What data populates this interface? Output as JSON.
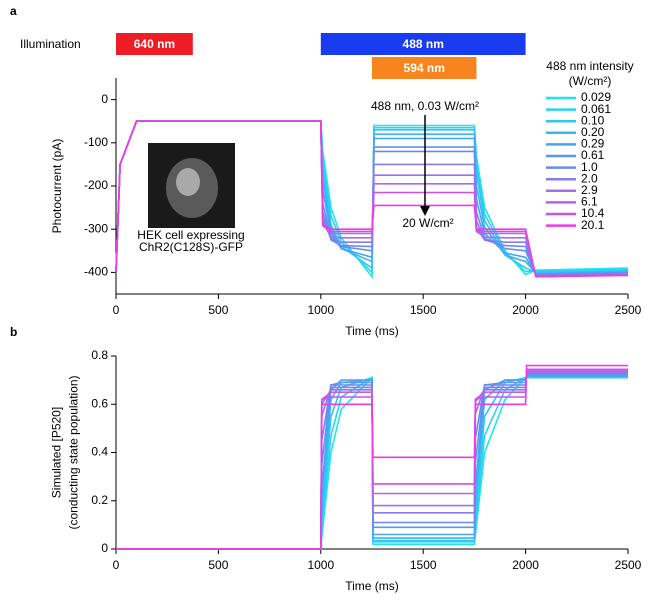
{
  "chart_data": [
    {
      "type": "line",
      "panel": "a",
      "ylabel": "Photocurrent (pA)",
      "xlabel": "Time (ms)",
      "xlim": [
        0,
        2500
      ],
      "xticks": [
        0,
        500,
        1000,
        1500,
        2000,
        2500
      ],
      "ylim": [
        -450,
        50
      ],
      "yticks": [
        0,
        -100,
        -200,
        -300,
        -400
      ],
      "illumination": {
        "label": "Illumination",
        "bars": [
          {
            "label": "640 nm",
            "start": 0,
            "end": 375,
            "color": "#ee1c25"
          },
          {
            "label": "488 nm",
            "start": 1000,
            "end": 2000,
            "color": "#1a3cf0"
          },
          {
            "label": "594 nm",
            "start": 1250,
            "end": 1760,
            "color": "#f7841e"
          }
        ]
      },
      "legend_title": [
        "488 nm intensity",
        "(W/cm²)"
      ],
      "annotations": [
        "488 nm, 0.03 W/cm²",
        "20 W/cm²"
      ],
      "inset_caption": [
        "HEK cell expressing",
        "ChR2(C128S)-GFP"
      ],
      "x": [
        0,
        20,
        100,
        1000,
        1010,
        1050,
        1100,
        1250,
        1260,
        1500,
        1750,
        1760,
        1800,
        1900,
        2000,
        2050,
        2500
      ],
      "series": [
        {
          "name": "0.029",
          "color": "#1ee6f0",
          "values": [
            -400,
            -150,
            -50,
            -50,
            -120,
            -250,
            -320,
            -410,
            -60,
            -60,
            -60,
            -130,
            -250,
            -350,
            -405,
            -395,
            -390
          ]
        },
        {
          "name": "0.061",
          "color": "#28d4f2",
          "values": [
            -400,
            -150,
            -50,
            -50,
            -140,
            -270,
            -330,
            -400,
            -65,
            -65,
            -65,
            -150,
            -265,
            -355,
            -398,
            -397,
            -393
          ]
        },
        {
          "name": "0.10",
          "color": "#32c4f2",
          "values": [
            -400,
            -150,
            -50,
            -50,
            -160,
            -290,
            -340,
            -390,
            -70,
            -70,
            -70,
            -170,
            -280,
            -360,
            -390,
            -400,
            -396
          ]
        },
        {
          "name": "0.20",
          "color": "#3cb4f2",
          "values": [
            -400,
            -150,
            -50,
            -50,
            -185,
            -300,
            -345,
            -375,
            -80,
            -80,
            -80,
            -200,
            -295,
            -360,
            -375,
            -402,
            -398
          ]
        },
        {
          "name": "0.29",
          "color": "#46a4f2",
          "values": [
            -400,
            -150,
            -50,
            -50,
            -210,
            -310,
            -345,
            -365,
            -90,
            -90,
            -90,
            -230,
            -310,
            -355,
            -365,
            -404,
            -400
          ]
        },
        {
          "name": "0.61",
          "color": "#5a96f0",
          "values": [
            -400,
            -150,
            -50,
            -50,
            -240,
            -320,
            -340,
            -350,
            -110,
            -110,
            -110,
            -260,
            -320,
            -345,
            -350,
            -405,
            -401
          ]
        },
        {
          "name": "1.0",
          "color": "#7088ee",
          "values": [
            -400,
            -150,
            -50,
            -50,
            -260,
            -325,
            -338,
            -340,
            -120,
            -120,
            -120,
            -280,
            -325,
            -338,
            -340,
            -406,
            -402
          ]
        },
        {
          "name": "2.0",
          "color": "#887cec",
          "values": [
            -400,
            -150,
            -50,
            -50,
            -275,
            -322,
            -330,
            -330,
            -150,
            -150,
            -150,
            -295,
            -325,
            -330,
            -330,
            -407,
            -403
          ]
        },
        {
          "name": "2.9",
          "color": "#a070ea",
          "values": [
            -400,
            -150,
            -50,
            -50,
            -285,
            -318,
            -320,
            -320,
            -175,
            -175,
            -175,
            -305,
            -318,
            -320,
            -320,
            -408,
            -404
          ]
        },
        {
          "name": "6.1",
          "color": "#b864e8",
          "values": [
            -400,
            -150,
            -50,
            -50,
            -290,
            -310,
            -310,
            -310,
            -195,
            -195,
            -195,
            -305,
            -310,
            -310,
            -310,
            -409,
            -405
          ]
        },
        {
          "name": "10.4",
          "color": "#d050e6",
          "values": [
            -400,
            -150,
            -50,
            -50,
            -292,
            -305,
            -305,
            -305,
            -215,
            -215,
            -215,
            -302,
            -305,
            -305,
            -305,
            -410,
            -406
          ]
        },
        {
          "name": "20.1",
          "color": "#ee3ce4",
          "values": [
            -400,
            -150,
            -50,
            -50,
            -290,
            -300,
            -300,
            -300,
            -245,
            -245,
            -245,
            -300,
            -300,
            -300,
            -300,
            -410,
            -407
          ]
        }
      ]
    },
    {
      "type": "line",
      "panel": "b",
      "ylabel": [
        "Simulated [P520]",
        "(conducting state population)"
      ],
      "xlabel": "Time (ms)",
      "xlim": [
        0,
        2500
      ],
      "xticks": [
        0,
        500,
        1000,
        1500,
        2000,
        2500
      ],
      "ylim": [
        0,
        0.8
      ],
      "yticks": [
        0,
        0.2,
        0.4,
        0.6,
        0.8
      ],
      "x": [
        0,
        1000,
        1005,
        1050,
        1100,
        1250,
        1255,
        1750,
        1755,
        1800,
        1900,
        2000,
        2005,
        2500
      ],
      "series": [
        {
          "color": "#1ee6f0",
          "values": [
            0,
            0,
            0.05,
            0.4,
            0.58,
            0.71,
            0.02,
            0.02,
            0.06,
            0.4,
            0.62,
            0.71,
            0.71,
            0.71
          ]
        },
        {
          "color": "#28d4f2",
          "values": [
            0,
            0,
            0.08,
            0.47,
            0.63,
            0.71,
            0.03,
            0.03,
            0.09,
            0.47,
            0.66,
            0.71,
            0.71,
            0.71
          ]
        },
        {
          "color": "#32c4f2",
          "values": [
            0,
            0,
            0.12,
            0.55,
            0.67,
            0.71,
            0.035,
            0.035,
            0.13,
            0.55,
            0.69,
            0.71,
            0.715,
            0.715
          ]
        },
        {
          "color": "#3cb4f2",
          "values": [
            0,
            0,
            0.18,
            0.62,
            0.69,
            0.7,
            0.045,
            0.045,
            0.19,
            0.62,
            0.7,
            0.7,
            0.715,
            0.715
          ]
        },
        {
          "color": "#46a4f2",
          "values": [
            0,
            0,
            0.25,
            0.66,
            0.7,
            0.7,
            0.06,
            0.06,
            0.26,
            0.66,
            0.7,
            0.7,
            0.72,
            0.72
          ]
        },
        {
          "color": "#5a96f0",
          "values": [
            0,
            0,
            0.35,
            0.68,
            0.69,
            0.69,
            0.09,
            0.09,
            0.36,
            0.68,
            0.69,
            0.69,
            0.72,
            0.72
          ]
        },
        {
          "color": "#7088ee",
          "values": [
            0,
            0,
            0.45,
            0.68,
            0.68,
            0.68,
            0.11,
            0.11,
            0.46,
            0.68,
            0.68,
            0.68,
            0.725,
            0.725
          ]
        },
        {
          "color": "#887cec",
          "values": [
            0,
            0,
            0.55,
            0.67,
            0.67,
            0.67,
            0.15,
            0.15,
            0.56,
            0.67,
            0.67,
            0.67,
            0.73,
            0.73
          ]
        },
        {
          "color": "#a070ea",
          "values": [
            0,
            0,
            0.6,
            0.66,
            0.66,
            0.66,
            0.18,
            0.18,
            0.61,
            0.66,
            0.66,
            0.66,
            0.735,
            0.735
          ]
        },
        {
          "color": "#b864e8",
          "values": [
            0,
            0,
            0.62,
            0.65,
            0.65,
            0.65,
            0.23,
            0.23,
            0.62,
            0.65,
            0.65,
            0.65,
            0.74,
            0.74
          ]
        },
        {
          "color": "#d050e6",
          "values": [
            0,
            0,
            0.62,
            0.63,
            0.63,
            0.63,
            0.27,
            0.27,
            0.62,
            0.63,
            0.63,
            0.63,
            0.745,
            0.745
          ]
        },
        {
          "color": "#ee3ce4",
          "values": [
            0,
            0,
            0.6,
            0.6,
            0.6,
            0.6,
            0.38,
            0.38,
            0.6,
            0.6,
            0.6,
            0.6,
            0.76,
            0.76
          ]
        }
      ]
    }
  ]
}
